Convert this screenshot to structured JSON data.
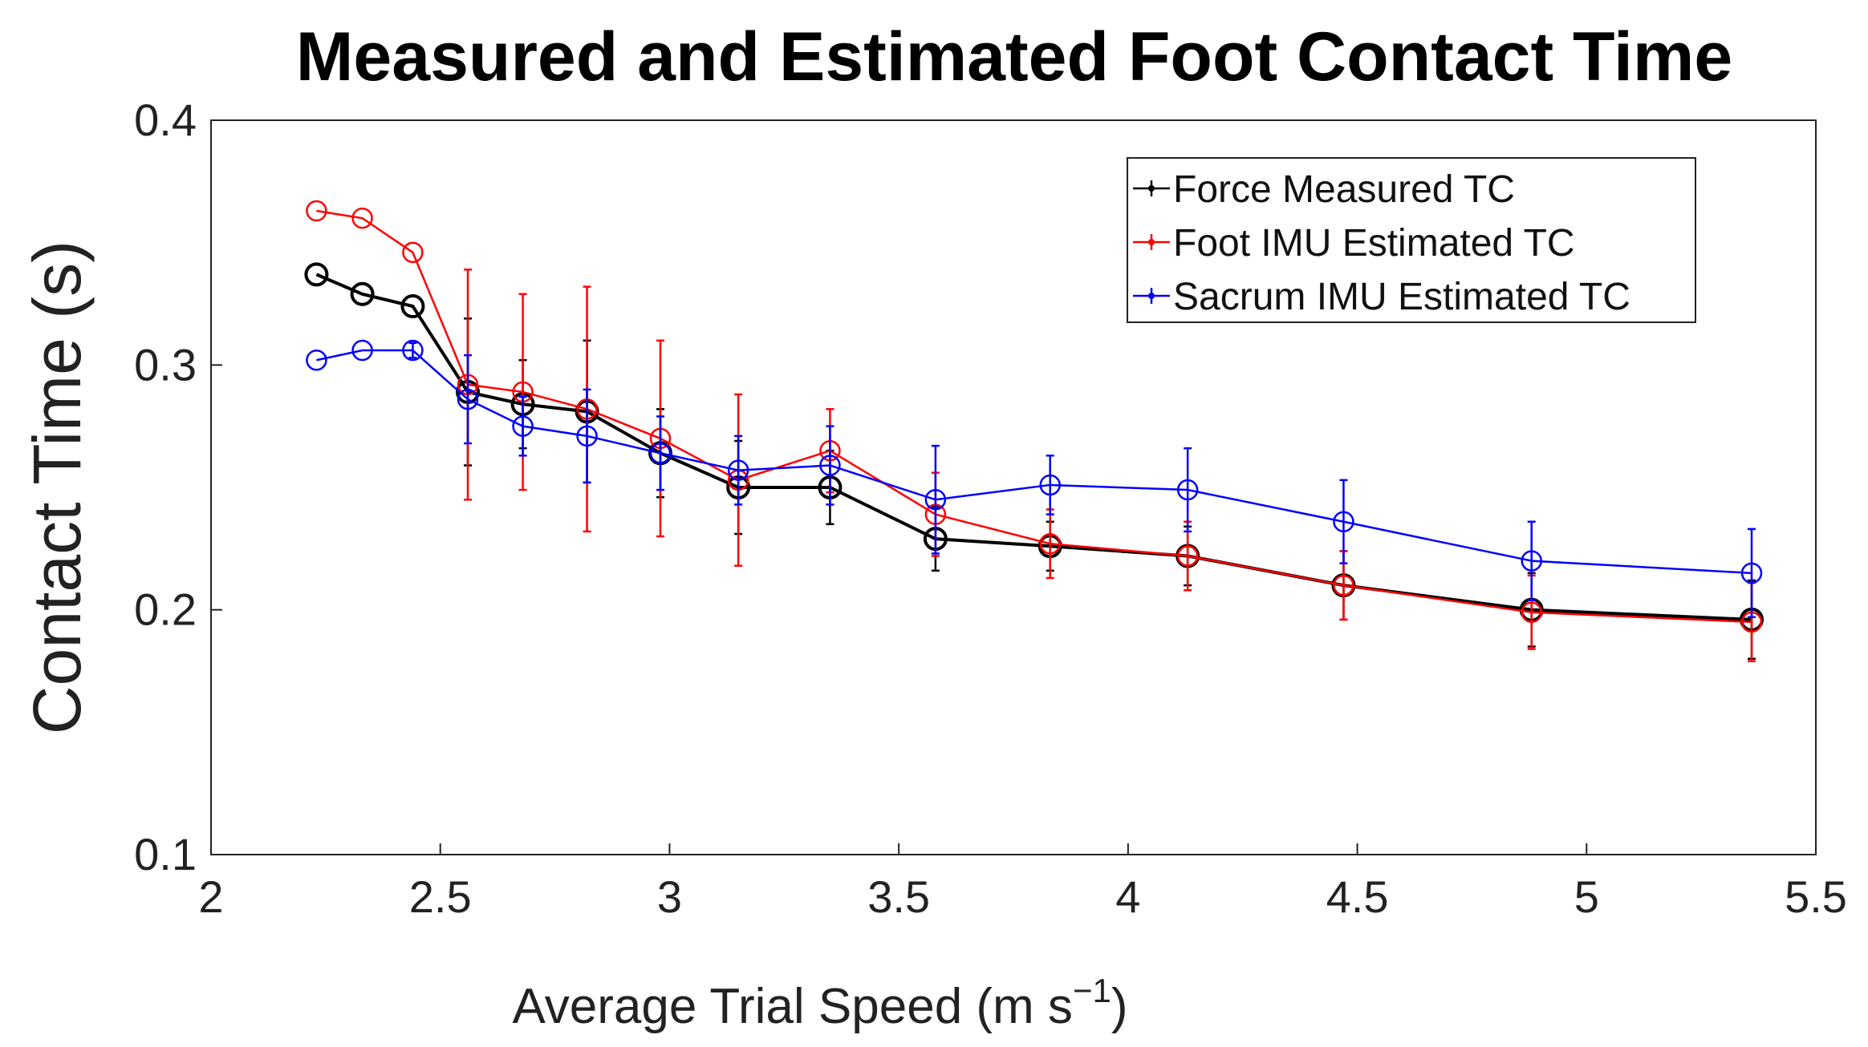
{
  "chart_data": {
    "type": "line",
    "title": "Measured and Estimated Foot Contact Time",
    "xlabel_main": "Average Trial Speed (m s",
    "xlabel_sup": "−1",
    "xlabel_close": ")",
    "ylabel": "Contact Time (s)",
    "xlim": [
      2,
      5.5
    ],
    "ylim": [
      0.1,
      0.4
    ],
    "xticks": [
      2,
      2.5,
      3,
      3.5,
      4,
      4.5,
      5,
      5.5
    ],
    "xtick_labels": [
      "2",
      "2.5",
      "3",
      "3.5",
      "4",
      "4.5",
      "5",
      "5.5"
    ],
    "yticks": [
      0.1,
      0.2,
      0.3,
      0.4
    ],
    "ytick_labels": [
      "0.1",
      "0.2",
      "0.3",
      "0.4"
    ],
    "legend_position": "top-right",
    "series": [
      {
        "name": "Force Measured TC",
        "color": "#000000",
        "x": [
          2.23,
          2.33,
          2.44,
          2.56,
          2.68,
          2.82,
          2.98,
          3.15,
          3.35,
          3.58,
          3.83,
          4.13,
          4.47,
          4.88,
          5.36
        ],
        "y": [
          0.337,
          0.329,
          0.324,
          0.289,
          0.284,
          0.281,
          0.264,
          0.25,
          0.25,
          0.229,
          0.226,
          0.222,
          0.21,
          0.2,
          0.196
        ],
        "err": [
          null,
          null,
          null,
          0.03,
          0.018,
          0.029,
          0.018,
          0.019,
          0.015,
          0.013,
          0.01,
          0.012,
          0.014,
          0.015,
          0.016
        ]
      },
      {
        "name": "Foot IMU Estimated TC",
        "color": "#ff0000",
        "x": [
          2.23,
          2.33,
          2.44,
          2.56,
          2.68,
          2.82,
          2.98,
          3.15,
          3.35,
          3.58,
          3.83,
          4.13,
          4.47,
          4.88,
          5.36
        ],
        "y": [
          0.363,
          0.36,
          0.346,
          0.292,
          0.289,
          0.282,
          0.27,
          0.253,
          0.265,
          0.239,
          0.227,
          0.222,
          0.21,
          0.199,
          0.195
        ],
        "err": [
          null,
          null,
          null,
          0.047,
          0.04,
          0.05,
          0.04,
          0.035,
          0.017,
          0.017,
          0.014,
          0.014,
          0.014,
          0.015,
          0.016
        ]
      },
      {
        "name": "Sacrum IMU Estimated TC",
        "color": "#0000ff",
        "x": [
          2.23,
          2.33,
          2.44,
          2.56,
          2.68,
          2.82,
          2.98,
          3.15,
          3.35,
          3.58,
          3.83,
          4.13,
          4.47,
          4.88,
          5.36
        ],
        "y": [
          0.302,
          0.306,
          0.306,
          0.286,
          0.275,
          0.271,
          0.264,
          0.257,
          0.259,
          0.245,
          0.251,
          0.249,
          0.236,
          0.22,
          0.215
        ],
        "err": [
          null,
          null,
          0.003,
          0.018,
          0.012,
          0.019,
          0.015,
          0.014,
          0.016,
          0.022,
          0.012,
          0.017,
          0.017,
          0.016,
          0.018
        ]
      }
    ]
  }
}
